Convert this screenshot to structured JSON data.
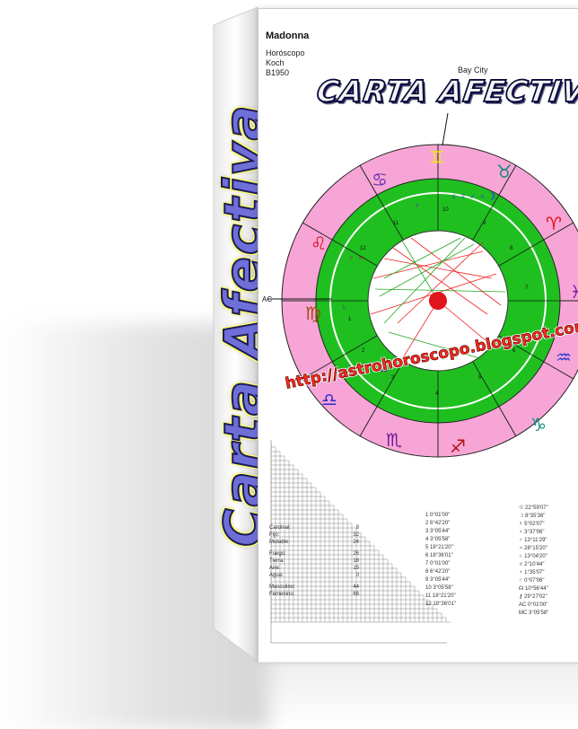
{
  "spine": {
    "title": "Carta Afectiva"
  },
  "chart": {
    "name": "Madonna",
    "meta": [
      "Horóscopo",
      "Koch",
      "B1950"
    ],
    "city": "Bay City",
    "title": "CARTA AFECTIVA",
    "url": "http://astrohoroscopo.blogspot.com",
    "ac_label": "AC",
    "house_numbers": [
      "1",
      "2",
      "3",
      "4",
      "5",
      "6",
      "7",
      "8",
      "9",
      "10",
      "11",
      "12"
    ],
    "signs": [
      "♋",
      "♊",
      "♉",
      "♈",
      "♓",
      "♒",
      "♑",
      "♐",
      "♏",
      "♎",
      "♍",
      "♌"
    ]
  },
  "stats": [
    {
      "label": "Cardinal:",
      "value": "8"
    },
    {
      "label": "Fijo:",
      "value": "32"
    },
    {
      "label": "Mutable:",
      "value": "24"
    },
    {
      "label": "Fuego:",
      "value": "26"
    },
    {
      "label": "Tierra:",
      "value": "18"
    },
    {
      "label": "Aire:",
      "value": "15"
    },
    {
      "label": "Agua:",
      "value": "0"
    },
    {
      "label": "Masculino:",
      "value": "44"
    },
    {
      "label": "Femenino:",
      "value": "66"
    }
  ],
  "house_cusps": [
    "1  0°01'00\"",
    "2  6°42'20\"",
    "3  3°05'44\"",
    "4  3°05'58\"",
    "5  18°21'20\"",
    "6  18°36'01\"",
    "7  0°01'00\"",
    "8  6°42'20\"",
    "9  3°05'44\"",
    "10  3°05'58\"",
    "11  18°21'20\"",
    "12  18°36'01\""
  ],
  "planet_positions": [
    "☉ 22°59'07\"",
    "☽ 8°35'36\"",
    "☿ 5°02'07\"",
    "♀ 3°37'06\"",
    "♂ 13°11'29\"",
    "♃ 28°15'20\"",
    "♄ 13°04'20\"",
    "♅ 2°10'44\"",
    "♆ 1°35'07\"",
    "♇ 0°07'06\"",
    "☊ 10°56'44\"",
    "⚷ 29°27'02\"",
    "AC 0°01'00\"",
    "MC 3°05'58\""
  ]
}
